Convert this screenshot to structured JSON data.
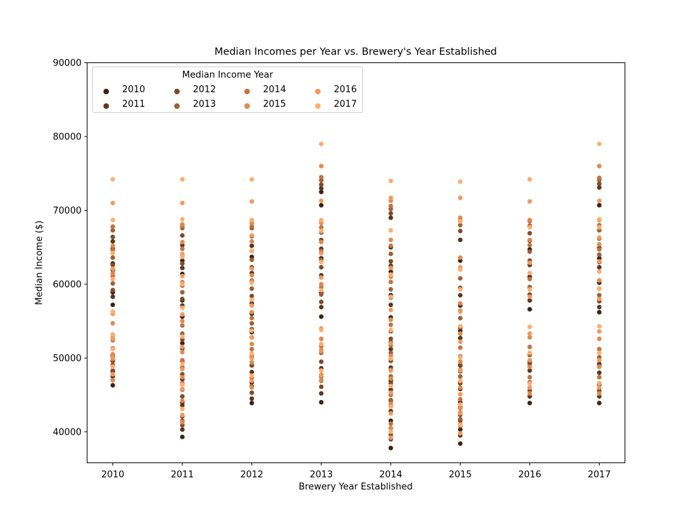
{
  "chart_data": {
    "type": "scatter",
    "title": "Median Incomes per Year vs. Brewery's Year Established",
    "xlabel": "Brewery Year Established",
    "ylabel": "Median Income ($)",
    "x_ticks": [
      "2010",
      "2011",
      "2012",
      "2013",
      "2014",
      "2015",
      "2016",
      "2017"
    ],
    "y_ticks": [
      "40000",
      "50000",
      "60000",
      "70000",
      "80000",
      "90000"
    ],
    "xlim": [
      2009.63,
      2017.37
    ],
    "ylim": [
      35800,
      90000
    ],
    "grid": false,
    "legend": {
      "title": "Median Income Year",
      "placement": "upper-left",
      "columns": 4
    },
    "series": [
      {
        "name": "2010",
        "color": "#3d2415",
        "x": [
          2010,
          2010,
          2010,
          2010,
          2010,
          2010,
          2010,
          2011,
          2011,
          2011,
          2011,
          2011,
          2011,
          2011,
          2011,
          2011,
          2012,
          2012,
          2012,
          2012,
          2012,
          2012,
          2012,
          2013,
          2013,
          2013,
          2013,
          2013,
          2013,
          2013,
          2014,
          2014,
          2014,
          2014,
          2014,
          2014,
          2014,
          2014,
          2014,
          2014,
          2015,
          2015,
          2015,
          2015,
          2015,
          2015,
          2015,
          2015,
          2016,
          2016,
          2016,
          2016,
          2016,
          2016,
          2017,
          2017,
          2017,
          2017,
          2017,
          2017,
          2017
        ],
        "y": [
          46300,
          48200,
          50400,
          57200,
          58900,
          62800,
          64800,
          39300,
          42100,
          44000,
          49600,
          52000,
          55600,
          57800,
          61400,
          63200,
          43900,
          46700,
          49000,
          53500,
          56000,
          60300,
          63700,
          44000,
          47500,
          55600,
          58800,
          63500,
          70700,
          72500,
          37800,
          41500,
          44200,
          46900,
          49800,
          52100,
          55500,
          58500,
          61700,
          65000,
          38400,
          40300,
          44000,
          46600,
          49000,
          53700,
          57100,
          63200,
          43900,
          46700,
          49500,
          56600,
          61000,
          64700,
          43900,
          46400,
          49200,
          56200,
          60200,
          63500,
          70700
        ]
      },
      {
        "name": "2011",
        "color": "#5c3720",
        "x": [
          2010,
          2010,
          2010,
          2010,
          2010,
          2011,
          2011,
          2011,
          2011,
          2011,
          2011,
          2011,
          2012,
          2012,
          2012,
          2012,
          2012,
          2012,
          2013,
          2013,
          2013,
          2013,
          2013,
          2013,
          2014,
          2014,
          2014,
          2014,
          2014,
          2014,
          2014,
          2014,
          2015,
          2015,
          2015,
          2015,
          2015,
          2015,
          2015,
          2016,
          2016,
          2016,
          2016,
          2016,
          2017,
          2017,
          2017,
          2017,
          2017,
          2017
        ],
        "y": [
          47500,
          49600,
          58300,
          61900,
          65800,
          40300,
          43600,
          47100,
          51300,
          57100,
          62200,
          65300,
          44500,
          48100,
          52800,
          57400,
          61500,
          65200,
          45200,
          48600,
          56900,
          61200,
          64800,
          73000,
          39000,
          42800,
          45700,
          48700,
          51200,
          57200,
          62500,
          69000,
          39500,
          41500,
          45800,
          48200,
          52700,
          58500,
          66000,
          44800,
          48300,
          57800,
          62600,
          65900,
          44800,
          48000,
          56900,
          62300,
          64900,
          73100
        ]
      },
      {
        "name": "2012",
        "color": "#7d4c2c",
        "x": [
          2010,
          2010,
          2010,
          2010,
          2010,
          2011,
          2011,
          2011,
          2011,
          2011,
          2011,
          2011,
          2012,
          2012,
          2012,
          2012,
          2012,
          2012,
          2013,
          2013,
          2013,
          2013,
          2013,
          2013,
          2014,
          2014,
          2014,
          2014,
          2014,
          2014,
          2014,
          2014,
          2015,
          2015,
          2015,
          2015,
          2015,
          2015,
          2015,
          2016,
          2016,
          2016,
          2016,
          2016,
          2017,
          2017,
          2017,
          2017,
          2017,
          2017
        ],
        "y": [
          48300,
          50200,
          59200,
          62600,
          66400,
          40900,
          44800,
          47800,
          52500,
          58000,
          62800,
          66600,
          45300,
          49000,
          53900,
          58400,
          62300,
          66500,
          46100,
          49500,
          57600,
          62300,
          66000,
          73500,
          39600,
          43500,
          46600,
          49600,
          52600,
          58200,
          63100,
          69600,
          40800,
          42300,
          46700,
          49100,
          54100,
          59500,
          67200,
          45600,
          49200,
          58600,
          63200,
          66900,
          45600,
          49000,
          57700,
          63000,
          66200,
          73600
        ]
      },
      {
        "name": "2013",
        "color": "#9e6038",
        "x": [
          2010,
          2010,
          2010,
          2010,
          2010,
          2011,
          2011,
          2011,
          2011,
          2011,
          2011,
          2011,
          2012,
          2012,
          2012,
          2012,
          2012,
          2012,
          2013,
          2013,
          2013,
          2013,
          2013,
          2013,
          2014,
          2014,
          2014,
          2014,
          2014,
          2014,
          2014,
          2014,
          2015,
          2015,
          2015,
          2015,
          2015,
          2015,
          2015,
          2016,
          2016,
          2016,
          2016,
          2016,
          2017,
          2017,
          2017,
          2017,
          2017,
          2017
        ],
        "y": [
          49100,
          51300,
          60100,
          63600,
          67300,
          41500,
          45700,
          48700,
          53300,
          58900,
          63800,
          67600,
          46200,
          50200,
          54700,
          59400,
          63300,
          67600,
          46900,
          50700,
          58600,
          63300,
          67000,
          74100,
          40500,
          44300,
          47500,
          50700,
          53600,
          59300,
          64100,
          70200,
          41700,
          43400,
          47500,
          50200,
          55400,
          60800,
          68000,
          46600,
          50400,
          59600,
          64400,
          67900,
          46500,
          50100,
          58500,
          64000,
          67300,
          74100
        ]
      },
      {
        "name": "2014",
        "color": "#be7543",
        "x": [
          2010,
          2010,
          2010,
          2010,
          2010,
          2011,
          2011,
          2011,
          2011,
          2011,
          2011,
          2011,
          2012,
          2012,
          2012,
          2012,
          2012,
          2012,
          2013,
          2013,
          2013,
          2013,
          2013,
          2013,
          2014,
          2014,
          2014,
          2014,
          2014,
          2014,
          2014,
          2014,
          2015,
          2015,
          2015,
          2015,
          2015,
          2015,
          2015,
          2016,
          2016,
          2016,
          2016,
          2016,
          2017,
          2017,
          2017,
          2017,
          2017,
          2017
        ],
        "y": [
          49800,
          52400,
          61100,
          64600,
          67800,
          42200,
          46600,
          49700,
          54400,
          59800,
          64800,
          67900,
          47300,
          51200,
          55400,
          60500,
          64500,
          67900,
          47700,
          51600,
          59600,
          64500,
          67700,
          74500,
          41100,
          45000,
          48400,
          51700,
          54500,
          60300,
          65200,
          70600,
          42600,
          44400,
          48400,
          51400,
          56400,
          62000,
          68600,
          47400,
          51500,
          60700,
          65300,
          68500,
          47400,
          51200,
          59400,
          64700,
          68000,
          74400
        ]
      },
      {
        "name": "2015",
        "color": "#df8a4f",
        "x": [
          2010,
          2010,
          2010,
          2010,
          2010,
          2010,
          2011,
          2011,
          2011,
          2011,
          2011,
          2011,
          2011,
          2011,
          2012,
          2012,
          2012,
          2012,
          2012,
          2012,
          2012,
          2013,
          2013,
          2013,
          2013,
          2013,
          2013,
          2013,
          2014,
          2014,
          2014,
          2014,
          2014,
          2014,
          2014,
          2014,
          2015,
          2015,
          2015,
          2015,
          2015,
          2015,
          2015,
          2015,
          2016,
          2016,
          2016,
          2016,
          2016,
          2016,
          2017,
          2017,
          2017,
          2017,
          2017,
          2017,
          2017
        ],
        "y": [
          47000,
          50500,
          53000,
          54700,
          61500,
          65200,
          41300,
          44200,
          47400,
          50800,
          55000,
          60300,
          65700,
          68100,
          46000,
          49400,
          51900,
          56200,
          61200,
          65800,
          68300,
          47000,
          51100,
          52600,
          60000,
          65700,
          68300,
          76000,
          40500,
          43800,
          47200,
          50300,
          55200,
          61000,
          66000,
          71300,
          41000,
          43200,
          46000,
          49500,
          53300,
          57400,
          63600,
          69000,
          45200,
          48800,
          52800,
          61500,
          66000,
          68700,
          45200,
          48800,
          52600,
          60500,
          65400,
          68700,
          76000
        ]
      },
      {
        "name": "2016",
        "color": "#ef9a60",
        "x": [
          2010,
          2010,
          2010,
          2010,
          2010,
          2010,
          2011,
          2011,
          2011,
          2011,
          2011,
          2011,
          2011,
          2011,
          2012,
          2012,
          2012,
          2012,
          2012,
          2012,
          2012,
          2013,
          2013,
          2013,
          2013,
          2013,
          2013,
          2013,
          2014,
          2014,
          2014,
          2014,
          2014,
          2014,
          2014,
          2014,
          2015,
          2015,
          2015,
          2015,
          2015,
          2015,
          2015,
          2015,
          2016,
          2016,
          2016,
          2016,
          2016,
          2016,
          2017,
          2017,
          2017,
          2017,
          2017,
          2017,
          2017
        ],
        "y": [
          47800,
          50000,
          52600,
          56000,
          62100,
          71000,
          42300,
          45800,
          48500,
          51500,
          55900,
          61100,
          64100,
          71000,
          46900,
          50000,
          52800,
          57100,
          62100,
          66600,
          71200,
          47600,
          50900,
          54000,
          60900,
          64200,
          68500,
          71300,
          39200,
          42500,
          45300,
          48300,
          52000,
          56500,
          62200,
          71700,
          39800,
          42500,
          45100,
          48300,
          52200,
          56300,
          62300,
          71700,
          46000,
          49700,
          53300,
          58300,
          62900,
          71200,
          46000,
          49700,
          53600,
          58000,
          63100,
          66300,
          71300
        ]
      },
      {
        "name": "2017",
        "color": "#fcae71",
        "x": [
          2010,
          2010,
          2010,
          2010,
          2010,
          2010,
          2010,
          2010,
          2011,
          2011,
          2011,
          2011,
          2011,
          2011,
          2011,
          2011,
          2011,
          2012,
          2012,
          2012,
          2012,
          2012,
          2012,
          2012,
          2012,
          2013,
          2013,
          2013,
          2013,
          2013,
          2013,
          2013,
          2013,
          2014,
          2014,
          2014,
          2014,
          2014,
          2014,
          2014,
          2014,
          2014,
          2015,
          2015,
          2015,
          2015,
          2015,
          2015,
          2015,
          2015,
          2015,
          2016,
          2016,
          2016,
          2016,
          2016,
          2016,
          2016,
          2017,
          2017,
          2017,
          2017,
          2017,
          2017,
          2017,
          2017
        ],
        "y": [
          48800,
          51200,
          53200,
          56300,
          60700,
          64200,
          68700,
          74200,
          43100,
          46400,
          49200,
          52900,
          56800,
          60000,
          63700,
          68800,
          74200,
          47600,
          50600,
          53700,
          57900,
          60200,
          64500,
          68700,
          74200,
          48300,
          51900,
          53800,
          59200,
          63000,
          67200,
          68700,
          79000,
          40000,
          43400,
          46200,
          49900,
          53800,
          58300,
          61300,
          67300,
          74000,
          40900,
          43700,
          46900,
          50100,
          54300,
          59300,
          62000,
          68500,
          73900,
          46600,
          50700,
          54200,
          59300,
          61500,
          67700,
          74200,
          46600,
          50700,
          54300,
          59400,
          61700,
          67700,
          68800,
          79000
        ]
      }
    ]
  }
}
